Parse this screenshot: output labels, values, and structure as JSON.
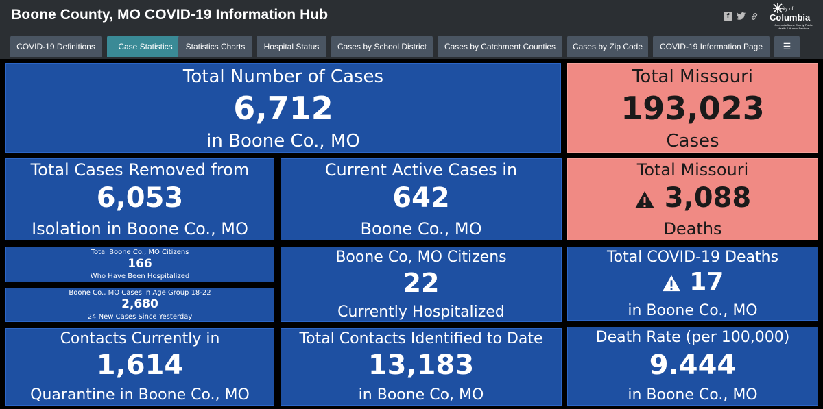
{
  "header": {
    "title": "Boone County, MO COVID-19 Information Hub",
    "logo": {
      "small": "city of",
      "big": "Columbia",
      "tiny": "Columbia/Boone County Public Health & Human Services"
    },
    "share_icons": [
      "facebook-icon",
      "twitter-icon",
      "link-icon"
    ]
  },
  "tabs": [
    {
      "label": "COVID-19 Definitions",
      "active": false
    },
    {
      "label": "Case Statistics",
      "active": true
    },
    {
      "label": "Statistics Charts",
      "active": false
    },
    {
      "label": "Hospital Status",
      "active": false
    },
    {
      "label": "Cases by School District",
      "active": false
    },
    {
      "label": "Cases by Catchment Counties",
      "active": false
    },
    {
      "label": "Cases by Zip Code",
      "active": false
    },
    {
      "label": "COVID-19 Information Page",
      "active": false
    },
    {
      "label": "☰",
      "active": false
    }
  ],
  "panels": {
    "total_cases": {
      "top": "Total Number of Cases",
      "value": "6,712",
      "bottom": "in Boone Co., MO"
    },
    "total_missouri_cases": {
      "top": "Total Missouri",
      "value": "193,023",
      "bottom": "Cases"
    },
    "removed": {
      "top": "Total Cases Removed from",
      "value": "6,053",
      "bottom": "Isolation in Boone Co., MO"
    },
    "active": {
      "top": "Current Active Cases in",
      "value": "642",
      "bottom": "Boone Co., MO"
    },
    "missouri_deaths": {
      "top": "Total Missouri",
      "value": "3,088",
      "bottom": "Deaths"
    },
    "hospitalized_total": {
      "top": "Total Boone Co., MO Citizens",
      "value": "166",
      "bottom": "Who Have Been Hospitalized"
    },
    "age_group": {
      "top": "Boone Co., MO Cases in Age Group 18-22",
      "value": "2,680",
      "bottom": "24 New Cases Since Yesterday"
    },
    "currently_hospitalized": {
      "top": "Boone Co, MO Citizens",
      "value": "22",
      "bottom": "Currently Hospitalized"
    },
    "covid_deaths": {
      "top": "Total COVID-19 Deaths",
      "value": "17",
      "bottom": "in Boone Co., MO"
    },
    "quarantine": {
      "top": "Contacts Currently in",
      "value": "1,614",
      "bottom": "Quarantine in Boone Co., MO"
    },
    "contacts_identified": {
      "top": "Total Contacts Identified to Date",
      "value": "13,183",
      "bottom": "in Boone Co, MO"
    },
    "death_rate": {
      "top": "Death Rate (per 100,000)",
      "value": "9.444",
      "bottom": "in Boone Co., MO"
    }
  },
  "colors": {
    "blue_panel": "#1e50a2",
    "pink_panel": "#f08a84",
    "header_bg": "#2b2f33",
    "tab_bg": "#4a5562",
    "tab_active": "#3a8a96"
  }
}
